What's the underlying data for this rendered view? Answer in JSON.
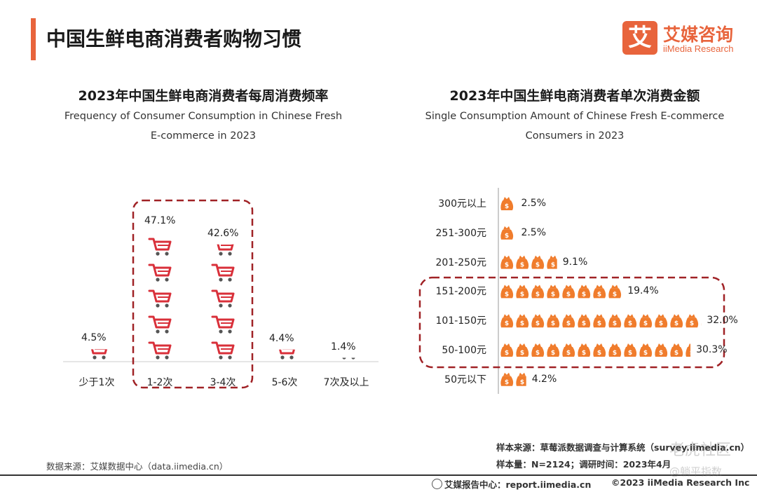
{
  "page_title": "中国生鲜电商消费者购物习惯",
  "logo": {
    "icon_text": "艾",
    "name_cn": "艾媒咨询",
    "name_en": "iiMedia Research"
  },
  "colors": {
    "accent": "#e8643c",
    "cart": "#d9303a",
    "bag": "#f07c2c",
    "highlight_box": "#a02226"
  },
  "chart_data": [
    {
      "type": "bar",
      "title": "2023年中国生鲜电商消费者每周消费频率",
      "subtitle_line1": "Frequency of Consumer Consumption in Chinese Fresh",
      "subtitle_line2": "E-commerce in 2023",
      "categories": [
        "少于1次",
        "1-2次",
        "3-4次",
        "5-6次",
        "7次及以上"
      ],
      "values": [
        4.5,
        47.1,
        42.6,
        4.4,
        1.4
      ],
      "value_labels": [
        "4.5%",
        "47.1%",
        "42.6%",
        "4.4%",
        "1.4%"
      ],
      "unit": "%",
      "highlighted": [
        "1-2次",
        "3-4次"
      ],
      "icon": "shopping-cart-icon"
    },
    {
      "type": "bar",
      "orientation": "horizontal",
      "title": "2023年中国生鲜电商消费者单次消费金额",
      "subtitle_line1": "Single Consumption Amount of Chinese Fresh E-commerce",
      "subtitle_line2": "Consumers in 2023",
      "categories": [
        "300元以上",
        "251-300元",
        "201-250元",
        "151-200元",
        "101-150元",
        "50-100元",
        "50元以下"
      ],
      "values": [
        2.5,
        2.5,
        9.1,
        19.4,
        32.0,
        30.3,
        4.2
      ],
      "value_labels": [
        "2.5%",
        "2.5%",
        "9.1%",
        "19.4%",
        "32.0%",
        "30.3%",
        "4.2%"
      ],
      "unit": "%",
      "highlighted": [
        "151-200元",
        "101-150元",
        "50-100元"
      ],
      "icon": "money-bag-icon"
    }
  ],
  "footer": {
    "left_source": "数据来源：艾媒数据中心（data.iimedia.cn）",
    "sample_source": "样本来源：草莓派数据调查与计算系统（survey.iimedia.cn）",
    "sample_size": "样本量：N=2124；调研时间：2023年4月",
    "report_center": "艾媒报告中心：report.iimedia.cn",
    "copyright": "©2023  iiMedia Research  Inc"
  },
  "watermark": {
    "line1": "老虎社区",
    "line2": "@躺平指数"
  }
}
